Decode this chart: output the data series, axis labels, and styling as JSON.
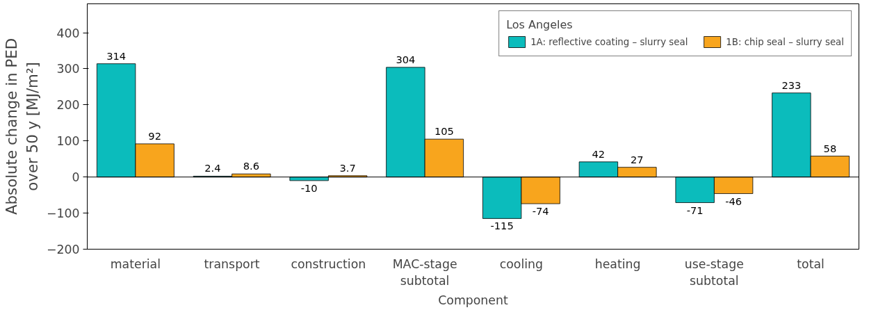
{
  "chart_data": {
    "type": "bar",
    "xlabel": "Component",
    "ylabel": "Absolute change in PED\nover 50 y [MJ/m²]",
    "legend_title": "Los Angeles",
    "categories": [
      "material",
      "transport",
      "construction",
      "MAC-stage\nsubtotal",
      "cooling",
      "heating",
      "use-stage\nsubtotal",
      "total"
    ],
    "series": [
      {
        "name": "1A: reflective coating – slurry seal",
        "color": "#0bbcbc",
        "values": [
          314,
          2.4,
          -10,
          304,
          -115,
          42,
          -71,
          233
        ]
      },
      {
        "name": "1B: chip seal – slurry seal",
        "color": "#f8a51d",
        "values": [
          92,
          8.6,
          3.7,
          105,
          -74,
          27,
          -46,
          58
        ]
      }
    ],
    "ylim": [
      -200,
      480
    ],
    "yticks": [
      -200,
      -100,
      0,
      100,
      200,
      300,
      400
    ],
    "legend": "top right",
    "data_labels": true
  }
}
